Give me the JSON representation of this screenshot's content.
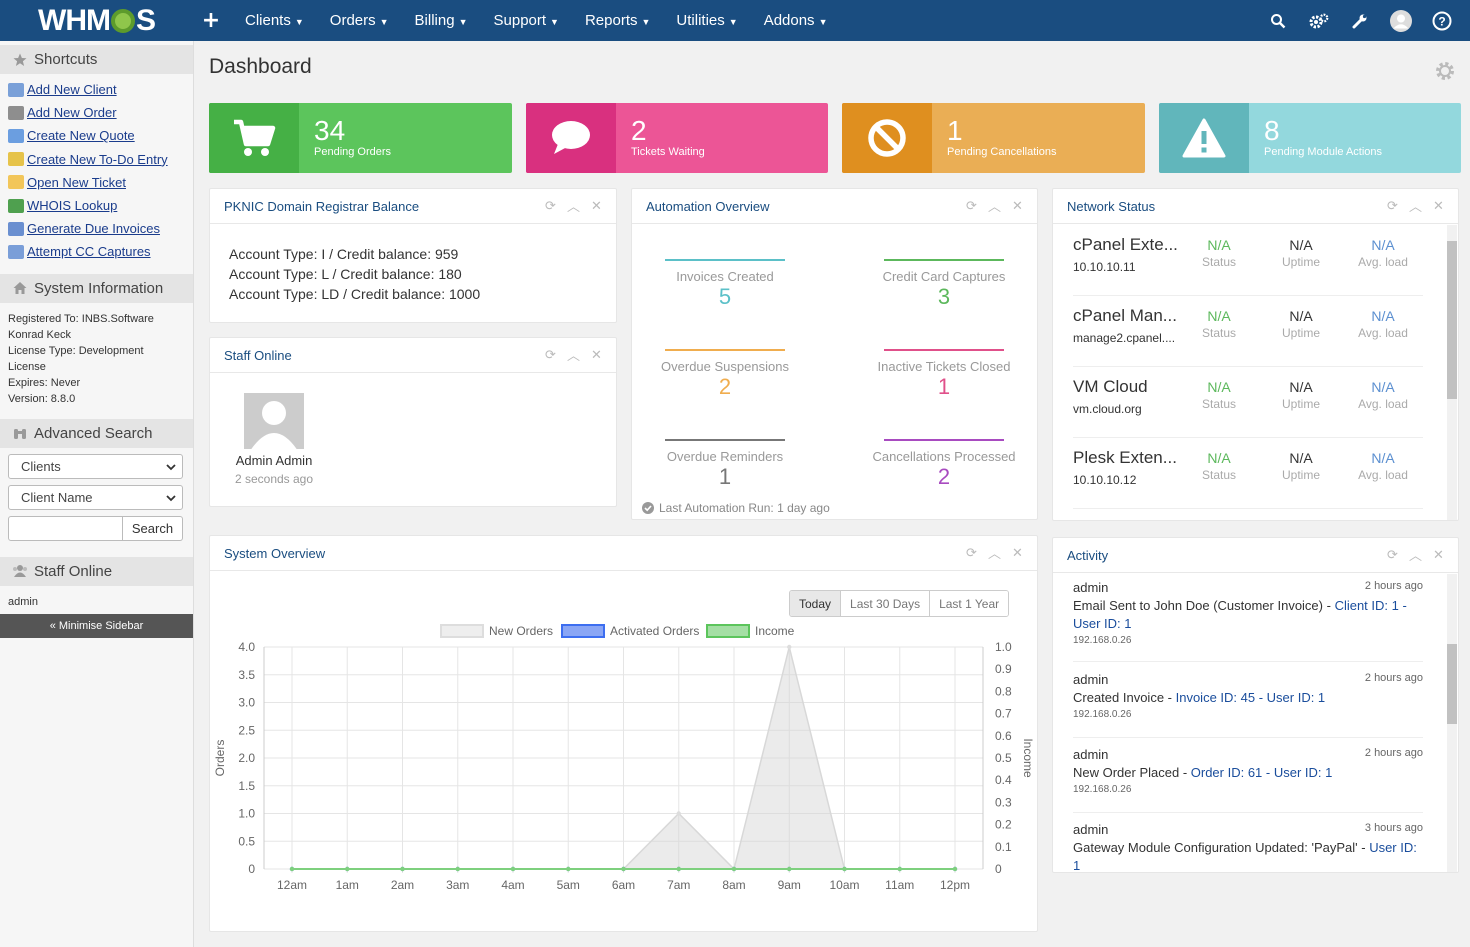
{
  "app": {
    "logo": "WHMCS"
  },
  "nav": {
    "plus": "+",
    "items": [
      "Clients",
      "Orders",
      "Billing",
      "Support",
      "Reports",
      "Utilities",
      "Addons"
    ],
    "right_icons": [
      "search-icon",
      "cogs-icon",
      "wrench-icon",
      "user-avatar-icon",
      "help-icon"
    ]
  },
  "sidebar": {
    "shortcuts_title": "Shortcuts",
    "shortcuts": [
      "Add New Client",
      "Add New Order",
      "Create New Quote",
      "Create New To-Do Entry",
      "Open New Ticket",
      "WHOIS Lookup",
      "Generate Due Invoices",
      "Attempt CC Captures"
    ],
    "sysinfo_title": "System Information",
    "sysinfo_lines": [
      "Registered To: INBS.Software",
      "Konrad Keck",
      "License Type: Development",
      "License",
      "Expires: Never",
      "Version: 8.8.0"
    ],
    "adv_search_title": "Advanced Search",
    "search_type": "Clients",
    "search_field": "Client Name",
    "search_button": "Search",
    "staff_title": "Staff Online",
    "staff_user": "admin",
    "minimise": "« Minimise Sidebar"
  },
  "page": {
    "title": "Dashboard"
  },
  "stats": [
    {
      "value": "34",
      "label": "Pending Orders",
      "color": "#5cc55c",
      "icon_bg": "#45b045"
    },
    {
      "value": "2",
      "label": "Tickets Waiting",
      "color": "#ec5596",
      "icon_bg": "#d9307f"
    },
    {
      "value": "1",
      "label": "Pending Cancellations",
      "color": "#eaae55",
      "icon_bg": "#df8f1f"
    },
    {
      "value": "8",
      "label": "Pending Module Actions",
      "color": "#93d8dd",
      "icon_bg": "#61b6bb"
    }
  ],
  "pknic": {
    "title": "PKNIC Domain Registrar Balance",
    "lines": [
      "Account Type: I / Credit balance: 959",
      "Account Type: L / Credit balance: 180",
      "Account Type: LD / Credit balance: 1000"
    ]
  },
  "staff_online": {
    "title": "Staff Online",
    "name": "Admin Admin",
    "time": "2 seconds ago"
  },
  "automation": {
    "title": "Automation Overview",
    "items": [
      {
        "label": "Invoices Created",
        "value": "5",
        "color": "#5bc0c8"
      },
      {
        "label": "Credit Card Captures",
        "value": "3",
        "color": "#5cb85c"
      },
      {
        "label": "Overdue Suspensions",
        "value": "2",
        "color": "#f0ad4e"
      },
      {
        "label": "Inactive Tickets Closed",
        "value": "1",
        "color": "#e0508a"
      },
      {
        "label": "Overdue Reminders",
        "value": "1",
        "color": "#777777"
      },
      {
        "label": "Cancellations Processed",
        "value": "2",
        "color": "#a84bc0"
      }
    ],
    "last_run": "Last Automation Run: 1 day ago"
  },
  "network": {
    "title": "Network Status",
    "servers": [
      {
        "name": "cPanel Exte...",
        "host": "10.10.10.11",
        "status": "N/A",
        "uptime": "N/A",
        "load": "N/A"
      },
      {
        "name": "cPanel Man...",
        "host": "manage2.cpanel....",
        "status": "N/A",
        "uptime": "N/A",
        "load": "N/A"
      },
      {
        "name": "VM Cloud",
        "host": "vm.cloud.org",
        "status": "N/A",
        "uptime": "N/A",
        "load": "N/A"
      },
      {
        "name": "Plesk Exten...",
        "host": "10.10.10.12",
        "status": "N/A",
        "uptime": "N/A",
        "load": "N/A"
      }
    ],
    "col_labels": {
      "status": "Status",
      "uptime": "Uptime",
      "load": "Avg. load"
    }
  },
  "activity": {
    "title": "Activity",
    "items": [
      {
        "user": "admin",
        "time": "2 hours ago",
        "pre": "Email Sent to John Doe (Customer Invoice) - ",
        "link": "Client ID: 1 - User ID: 1",
        "ip": "192.168.0.26"
      },
      {
        "user": "admin",
        "time": "2 hours ago",
        "pre": "Created Invoice - ",
        "link": "Invoice ID: 45 - User ID: 1",
        "ip": "192.168.0.26"
      },
      {
        "user": "admin",
        "time": "2 hours ago",
        "pre": "New Order Placed - ",
        "link": "Order ID: 61 - User ID: 1",
        "ip": "192.168.0.26"
      },
      {
        "user": "admin",
        "time": "3 hours ago",
        "pre": "Gateway Module Configuration Updated: 'PayPal' - ",
        "link": "User ID: 1",
        "ip": ""
      }
    ]
  },
  "system_overview": {
    "title": "System Overview",
    "ranges": [
      "Today",
      "Last 30 Days",
      "Last 1 Year"
    ],
    "active_range": "Today"
  },
  "chart_data": {
    "type": "area",
    "x": [
      "12am",
      "1am",
      "2am",
      "3am",
      "4am",
      "5am",
      "6am",
      "7am",
      "8am",
      "9am",
      "10am",
      "11am",
      "12pm"
    ],
    "series": [
      {
        "name": "New Orders",
        "axis": "left",
        "values": [
          0,
          0,
          0,
          0,
          0,
          0,
          0,
          1,
          0,
          4,
          0,
          0,
          0
        ],
        "color": "#dddddd"
      },
      {
        "name": "Activated Orders",
        "axis": "left",
        "values": [
          0,
          0,
          0,
          0,
          0,
          0,
          0,
          0,
          0,
          0,
          0,
          0,
          0
        ],
        "color": "#6a8ff0"
      },
      {
        "name": "Income",
        "axis": "right",
        "values": [
          0,
          0,
          0,
          0,
          0,
          0,
          0,
          0,
          0,
          0,
          0,
          0,
          0
        ],
        "color": "#7ed07e"
      }
    ],
    "ylabel": "Orders",
    "y2label": "Income",
    "ylim": [
      0,
      4
    ],
    "y2lim": [
      0,
      1
    ],
    "yticks": [
      "0",
      "0.5",
      "1.0",
      "1.5",
      "2.0",
      "2.5",
      "3.0",
      "3.5",
      "4.0"
    ],
    "y2ticks": [
      "0",
      "0.1",
      "0.2",
      "0.3",
      "0.4",
      "0.5",
      "0.6",
      "0.7",
      "0.8",
      "0.9",
      "1.0"
    ],
    "legend": "top",
    "grid": true
  }
}
